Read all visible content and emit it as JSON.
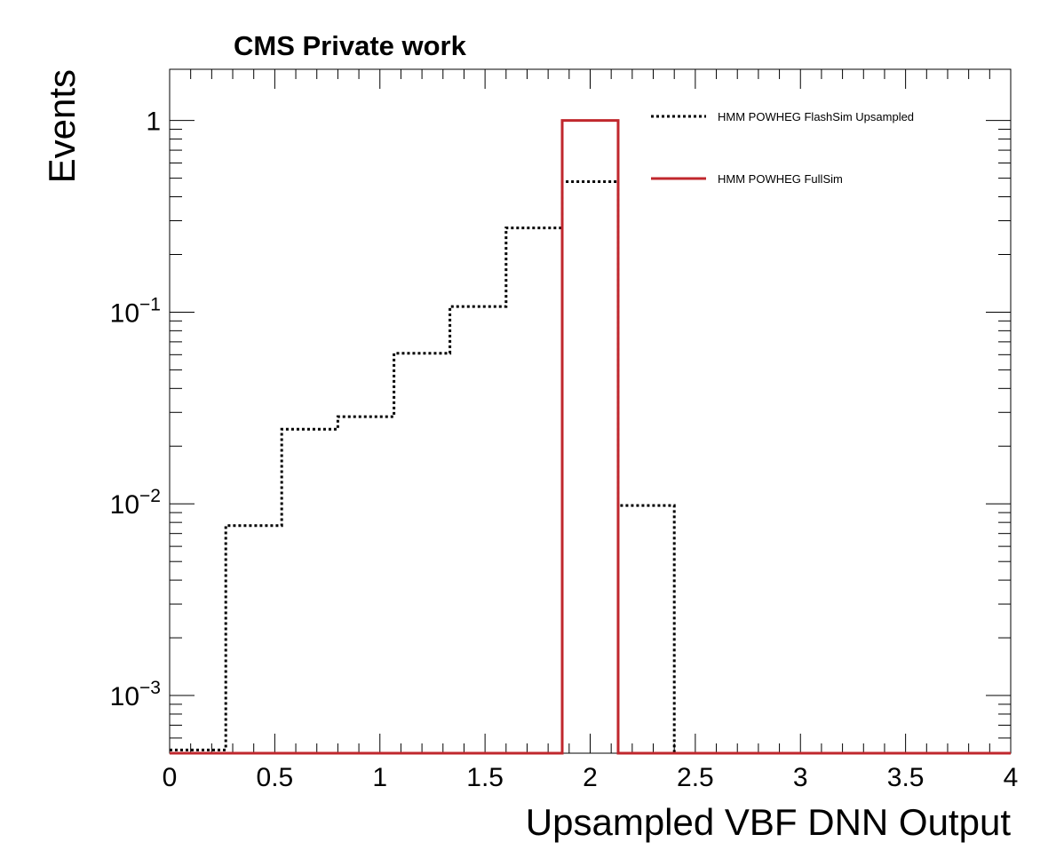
{
  "header": {
    "label": "CMS Private work"
  },
  "chart_data": {
    "type": "step-histogram",
    "xlabel": "Upsampled VBF DNN Output",
    "ylabel": "Events",
    "xlim": [
      0,
      4
    ],
    "ylim": [
      0.0005,
      1.85
    ],
    "yscale": "log",
    "grid": false,
    "legend_position": "top-right",
    "x_ticks": [
      "0",
      "0.5",
      "1",
      "1.5",
      "2",
      "2.5",
      "3",
      "3.5",
      "4"
    ],
    "y_tick_labels": [
      {
        "value": 1,
        "base": "1",
        "exp": ""
      },
      {
        "value": 0.1,
        "base": "10",
        "exp": "−1"
      },
      {
        "value": 0.01,
        "base": "10",
        "exp": "−2"
      },
      {
        "value": 0.001,
        "base": "10",
        "exp": "−3"
      }
    ],
    "bin_edges": [
      0,
      0.267,
      0.533,
      0.8,
      1.067,
      1.333,
      1.6,
      1.867,
      2.133,
      2.4,
      2.667,
      2.933,
      3.2,
      3.467,
      3.733,
      4.0
    ],
    "series": [
      {
        "name": "HMM POWHEG FlashSim Upsampled",
        "color": "#000000",
        "style": "dotted",
        "values": [
          0.00052,
          0.0077,
          0.0245,
          0.0285,
          0.061,
          0.107,
          0.275,
          0.48,
          0.0098,
          0,
          0,
          0,
          0,
          0,
          0
        ]
      },
      {
        "name": "HMM POWHEG FullSim",
        "color": "#c0272d",
        "style": "solid",
        "values": [
          0,
          0,
          0,
          0,
          0,
          0,
          0,
          1.0,
          0,
          0,
          0,
          0,
          0,
          0,
          0
        ]
      }
    ]
  }
}
